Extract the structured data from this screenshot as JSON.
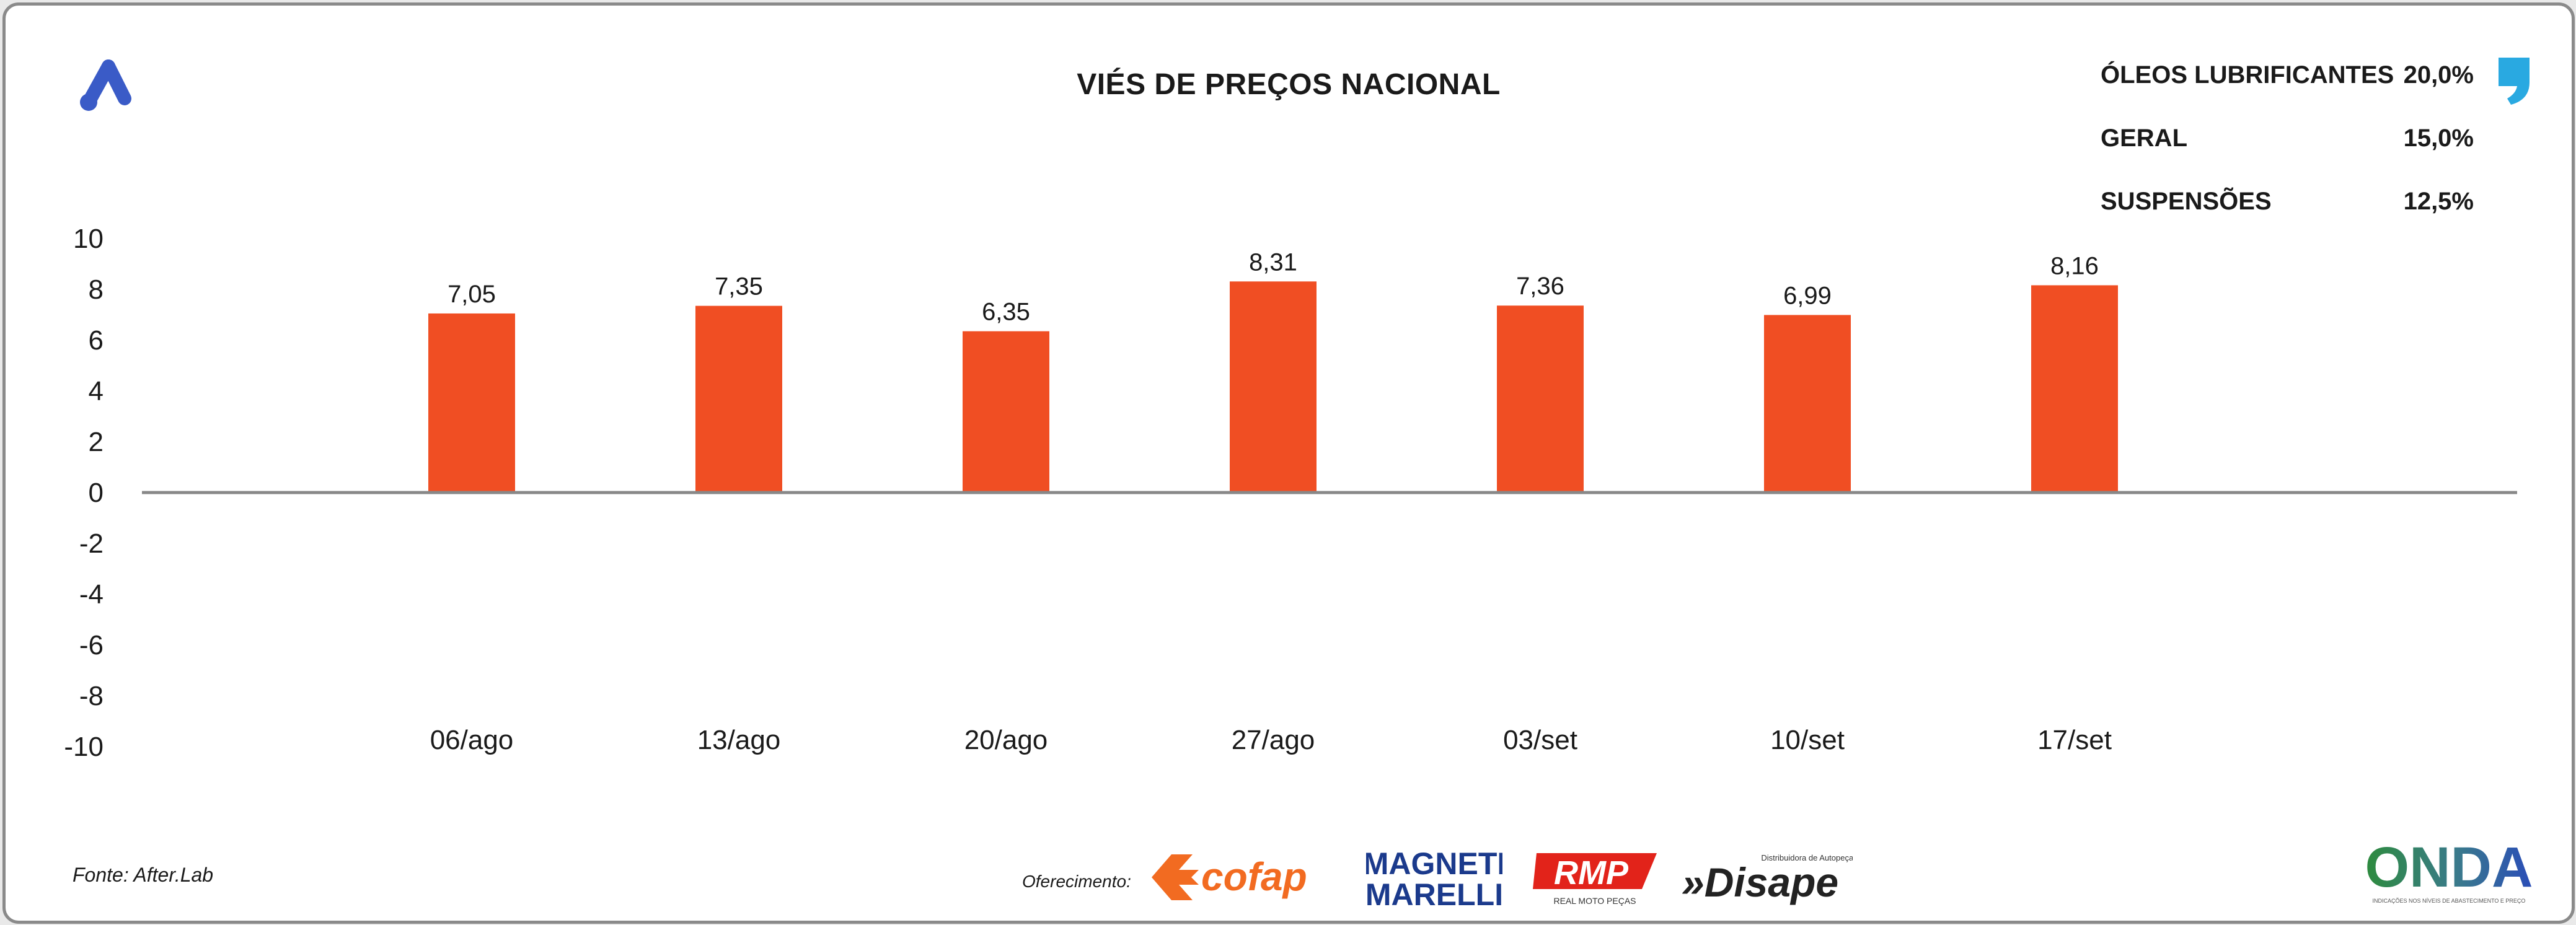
{
  "header": {
    "title": "VIÉS DE PREÇOS NACIONAL"
  },
  "ranking": [
    {
      "label": "ÓLEOS LUBRIFICANTES",
      "value": "20,0%"
    },
    {
      "label": "GERAL",
      "value": "15,0%"
    },
    {
      "label": "SUSPENSÕES",
      "value": "12,5%"
    }
  ],
  "chart_data": {
    "type": "bar",
    "categories": [
      "06/ago",
      "13/ago",
      "20/ago",
      "27/ago",
      "03/set",
      "10/set",
      "17/set"
    ],
    "values": [
      7.05,
      7.35,
      6.35,
      8.31,
      7.36,
      6.99,
      8.16
    ],
    "value_labels": [
      "7,05",
      "7,35",
      "6,35",
      "8,31",
      "7,36",
      "6,99",
      "8,16"
    ],
    "ylim": [
      -10,
      10
    ],
    "yticks": [
      10,
      8,
      6,
      4,
      2,
      0,
      -2,
      -4,
      -6,
      -8,
      -10
    ],
    "bar_color": "#f04e23",
    "grid": false
  },
  "footer": {
    "source": "Fonte: After.Lab",
    "sponsor_label": "Oferecimento:",
    "sponsors": [
      {
        "name": "cofap",
        "text": "cofap",
        "color": "#f26b21"
      },
      {
        "name": "magneti-marelli",
        "text1": "MAGNETI",
        "text2": "MARELLI",
        "color": "#1b3a8c"
      },
      {
        "name": "rmp",
        "text": "RMP",
        "sub": "REAL MOTO PEÇAS",
        "color": "#e2231a"
      },
      {
        "name": "disape",
        "text": "»Disape",
        "sub": "Distribuidora de Autopeças",
        "color": "#222222"
      }
    ],
    "onda": {
      "text": "ONDA",
      "sub": "INDICAÇÕES NOS NÍVEIS DE ABASTECIMENTO E PREÇO"
    }
  },
  "colors": {
    "brand_blue": "#3a5bc7",
    "accent_cyan": "#29a9e1",
    "axis": "#888888"
  }
}
